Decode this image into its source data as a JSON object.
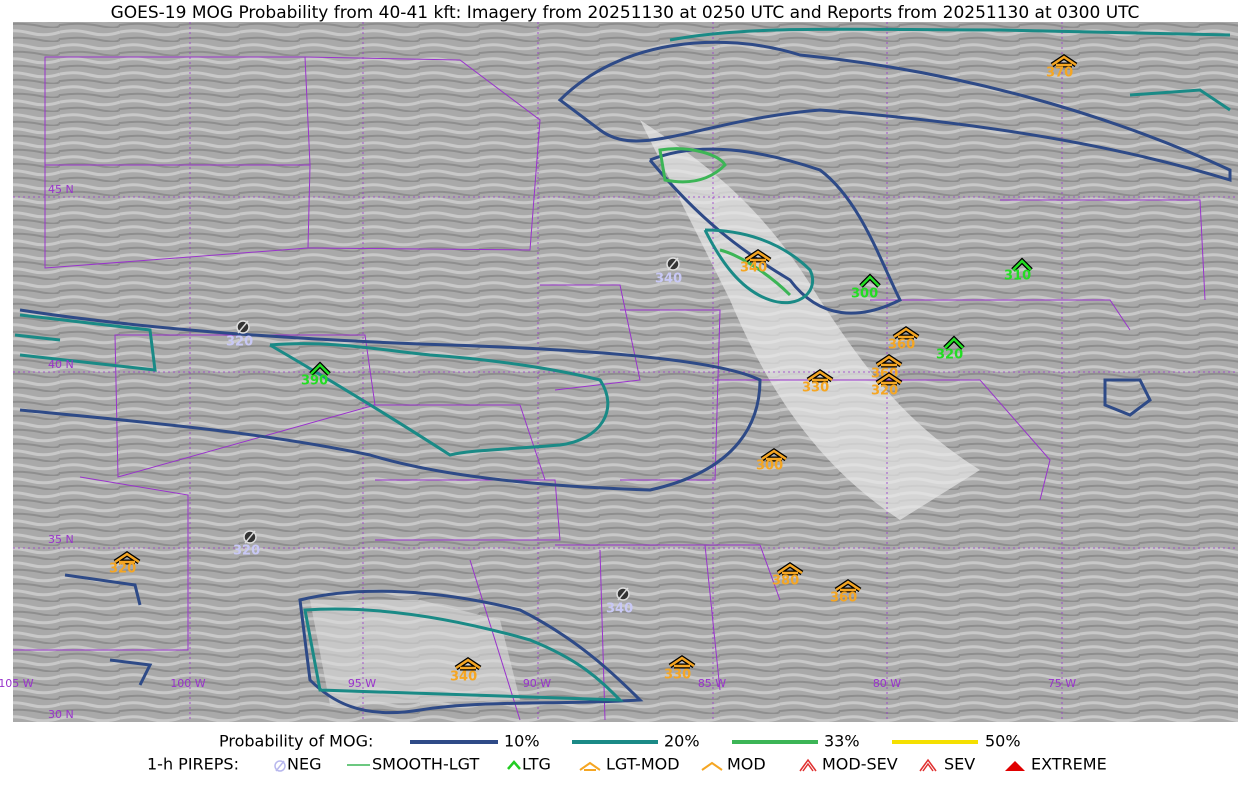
{
  "title": "GOES-19 MOG Probability from 40-41 kft: Imagery from 20251130 at 0250 UTC and Reports from 20251130 at 0300 UTC",
  "map": {
    "lat_labels": [
      "45 N",
      "40 N",
      "35 N",
      "30 N"
    ],
    "lon_labels": [
      "105 W",
      "100 W",
      "95 W",
      "90 W",
      "85 W",
      "80 W",
      "75 W"
    ],
    "reports": [
      "370",
      "340",
      "300",
      "310",
      "360",
      "320",
      "390",
      "330",
      "360",
      "320",
      "300",
      "320",
      "380",
      "360",
      "340",
      "330",
      "320",
      "320",
      "340",
      "340"
    ]
  },
  "legend": {
    "probability_title": "Probability of MOG:",
    "probabilities": [
      "10%",
      "20%",
      "33%",
      "50%"
    ],
    "pireps_title": "1-h PIREPS:",
    "pireps": [
      "NEG",
      "SMOOTH-LGT",
      "LTG",
      "LGT-MOD",
      "MOD",
      "MOD-SEV",
      "SEV",
      "EXTREME"
    ]
  }
}
